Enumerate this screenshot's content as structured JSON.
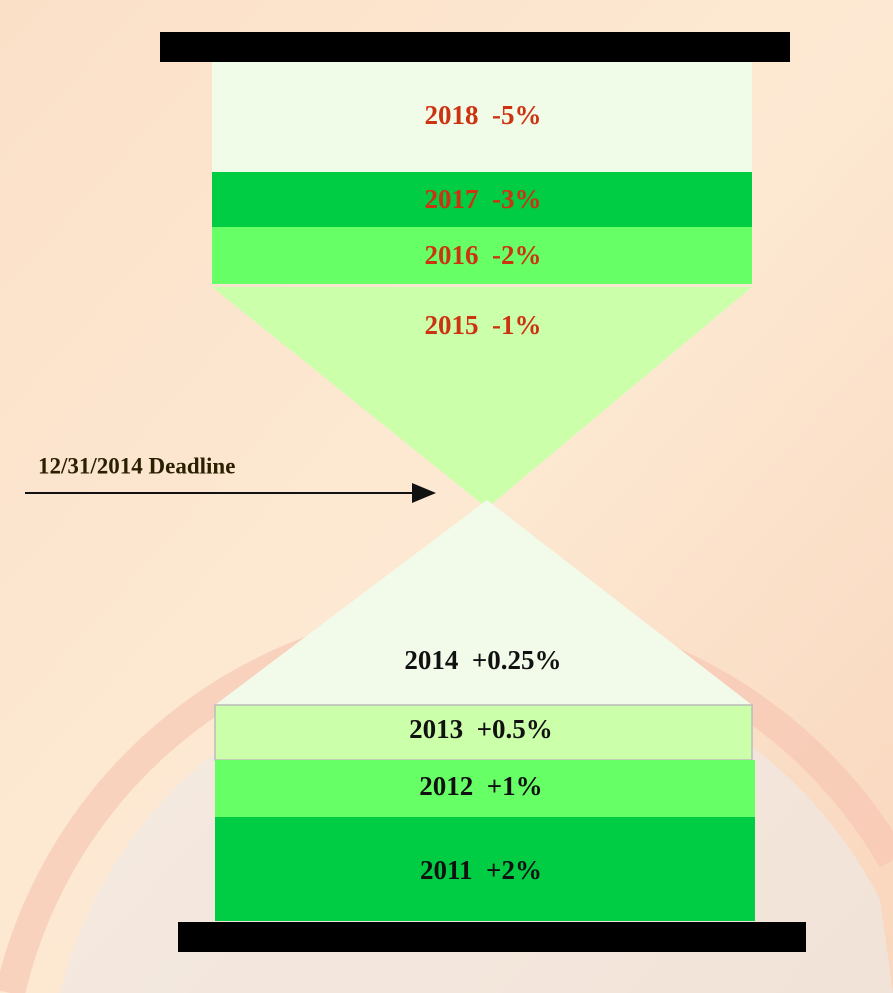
{
  "top_segments": [
    {
      "label": "2018  -5%"
    },
    {
      "label": "2017  -3%"
    },
    {
      "label": "2016  -2%"
    },
    {
      "label": "2015  -1%"
    }
  ],
  "bottom_segments": [
    {
      "label": "2014  +0.25%"
    },
    {
      "label": "2013  +0.5%"
    },
    {
      "label": "2012  +1%"
    },
    {
      "label": "2011  +2%"
    }
  ],
  "deadline": {
    "label": "12/31/2014 Deadline"
  }
}
